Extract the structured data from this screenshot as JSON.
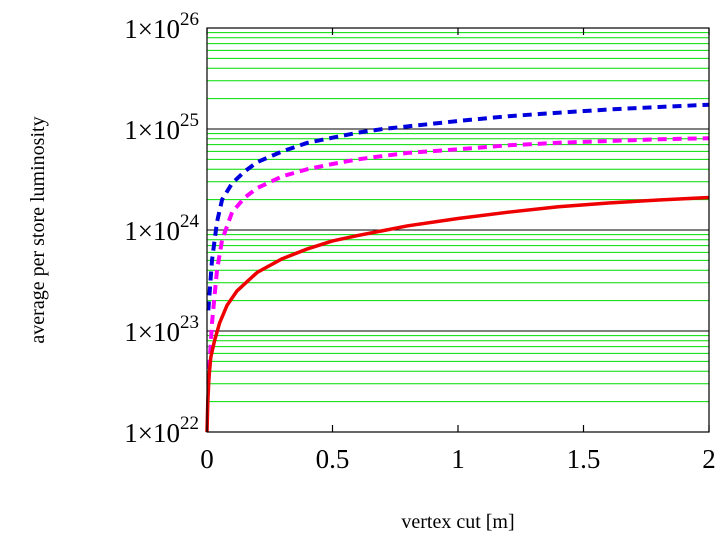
{
  "chart_data": {
    "type": "line",
    "title": "",
    "xlabel": "vertex cut [m]",
    "ylabel": "average per store luminosity",
    "xlim": [
      0,
      2
    ],
    "ylim": [
      1e+22,
      1e+26
    ],
    "yscale": "log",
    "grid": {
      "major": "on",
      "minor": "on",
      "major_color": "#000000",
      "minor_color": "#00dd00"
    },
    "x_ticks": [
      {
        "value": 0,
        "label": "0"
      },
      {
        "value": 0.5,
        "label": "0.5"
      },
      {
        "value": 1,
        "label": "1"
      },
      {
        "value": 1.5,
        "label": "1.5"
      },
      {
        "value": 2,
        "label": "2"
      }
    ],
    "y_ticks": [
      {
        "value": 1e+22,
        "base": "1×10",
        "exp": "22"
      },
      {
        "value": 1e+23,
        "base": "1×10",
        "exp": "23"
      },
      {
        "value": 1e+24,
        "base": "1×10",
        "exp": "24"
      },
      {
        "value": 1e+25,
        "base": "1×10",
        "exp": "25"
      },
      {
        "value": 1e+26,
        "base": "1×10",
        "exp": "26"
      }
    ],
    "series": [
      {
        "color": "#0000dd",
        "style": "dashed",
        "x": [
          0.005,
          0.02,
          0.04,
          0.06,
          0.1,
          0.15,
          0.2,
          0.3,
          0.4,
          0.5,
          0.6,
          0.7,
          0.8,
          1.0,
          1.2,
          1.4,
          1.6,
          1.8,
          2.0
        ],
        "y": [
          1.6e+23,
          5e+23,
          1.2e+24,
          2e+24,
          2.9e+24,
          3.8e+24,
          4.7e+24,
          6e+24,
          7.3e+24,
          8.2e+24,
          9.2e+24,
          1e+25,
          1.06e+25,
          1.2e+25,
          1.34e+25,
          1.45e+25,
          1.56e+25,
          1.65e+25,
          1.74e+25
        ]
      },
      {
        "color": "#ff00ff",
        "style": "dashed",
        "x": [
          0.005,
          0.02,
          0.04,
          0.06,
          0.1,
          0.15,
          0.2,
          0.3,
          0.4,
          0.5,
          0.6,
          0.7,
          0.8,
          1.0,
          1.2,
          1.4,
          1.6,
          1.8,
          2.0
        ],
        "y": [
          3e+22,
          1.2e+23,
          4e+23,
          8e+23,
          1.5e+24,
          2.1e+24,
          2.6e+24,
          3.4e+24,
          4e+24,
          4.5e+24,
          5e+24,
          5.4e+24,
          5.8e+24,
          6.3e+24,
          6.9e+24,
          7.3e+24,
          7.6e+24,
          7.9e+24,
          8.1e+24
        ]
      },
      {
        "color": "#ee0000",
        "style": "solid",
        "x": [
          0.0,
          0.003,
          0.008,
          0.015,
          0.03,
          0.05,
          0.08,
          0.12,
          0.2,
          0.3,
          0.4,
          0.5,
          0.6,
          0.8,
          1.0,
          1.2,
          1.4,
          1.6,
          1.8,
          2.0
        ],
        "y": [
          1e+22,
          2e+22,
          3.5e+22,
          5.5e+22,
          8e+22,
          1.2e+23,
          1.8e+23,
          2.5e+23,
          3.8e+23,
          5.2e+23,
          6.5e+23,
          7.8e+23,
          8.8e+23,
          1.1e+24,
          1.3e+24,
          1.5e+24,
          1.7e+24,
          1.85e+24,
          1.98e+24,
          2.1e+24
        ]
      }
    ]
  }
}
